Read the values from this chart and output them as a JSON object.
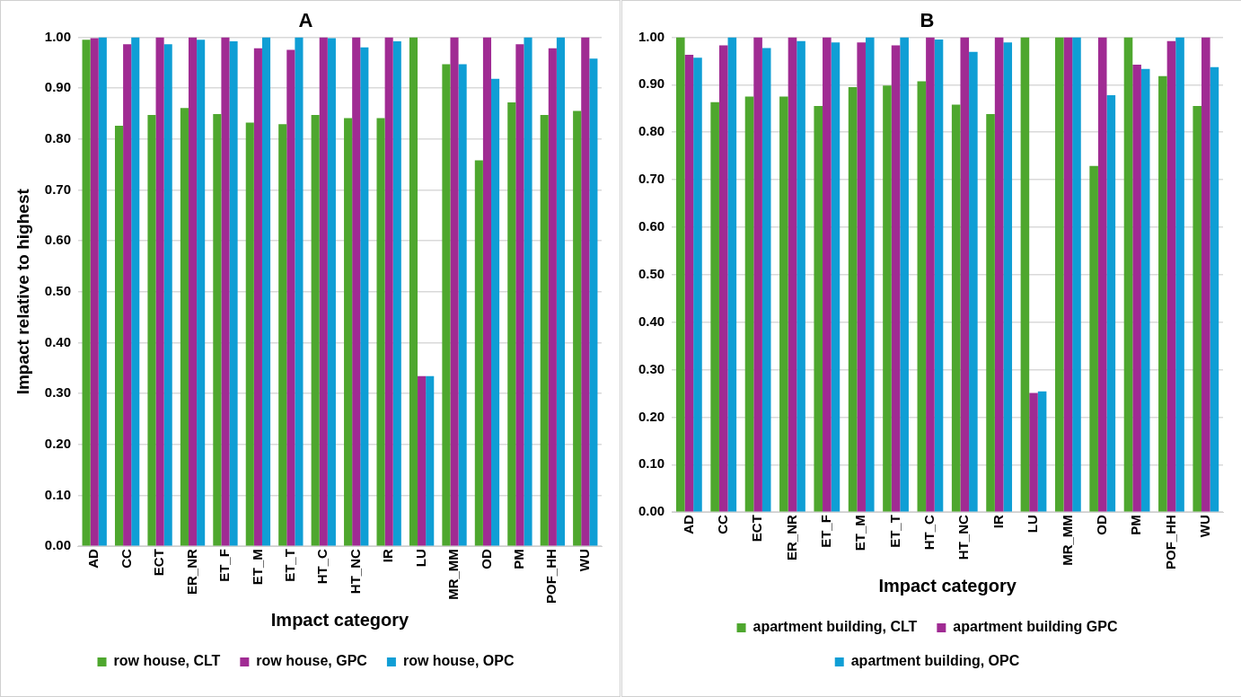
{
  "chart_data": [
    {
      "type": "bar",
      "title": "A",
      "xlabel": "Impact category",
      "ylabel": "Impact relative to highest",
      "categories": [
        "AD",
        "CC",
        "ECT",
        "ER_NR",
        "ET_F",
        "ET_M",
        "ET_T",
        "HT_C",
        "HT_NC",
        "IR",
        "LU",
        "MR_MM",
        "OD",
        "PM",
        "POF_HH",
        "WU"
      ],
      "ylim": [
        0,
        1
      ],
      "yticks": [
        {
          "value": 0,
          "label": "0.00"
        },
        {
          "value": 0.1,
          "label": "0.10"
        },
        {
          "value": 0.2,
          "label": "0.20"
        },
        {
          "value": 0.3,
          "label": "0.30"
        },
        {
          "value": 0.4,
          "label": "0.40"
        },
        {
          "value": 0.5,
          "label": "0.50"
        },
        {
          "value": 0.6,
          "label": "0.60"
        },
        {
          "value": 0.7,
          "label": "0.70"
        },
        {
          "value": 0.8,
          "label": "0.80"
        },
        {
          "value": 0.9,
          "label": "0.90"
        },
        {
          "value": 1,
          "label": "1.00"
        }
      ],
      "grid": "y",
      "legend": "bottom",
      "series": [
        {
          "name": "row house, CLT",
          "color": "#4ea72e",
          "values": [
            0.995,
            0.826,
            0.847,
            0.861,
            0.849,
            0.832,
            0.829,
            0.847,
            0.841,
            0.841,
            1.0,
            0.947,
            0.758,
            0.872,
            0.847,
            0.855
          ]
        },
        {
          "name": "row house, GPC",
          "color": "#a02b93",
          "values": [
            0.998,
            0.986,
            1.0,
            1.0,
            1.0,
            0.978,
            0.975,
            1.0,
            1.0,
            1.0,
            0.334,
            1.0,
            1.0,
            0.986,
            0.978,
            1.0
          ]
        },
        {
          "name": "row house, OPC",
          "color": "#0f9ed5",
          "values": [
            1.0,
            1.0,
            0.986,
            0.995,
            0.992,
            1.0,
            1.0,
            0.998,
            0.98,
            0.992,
            0.334,
            0.947,
            0.918,
            1.0,
            1.0,
            0.958
          ]
        }
      ]
    },
    {
      "type": "bar",
      "title": "B",
      "xlabel": "Impact category",
      "categories": [
        "AD",
        "CC",
        "ECT",
        "ER_NR",
        "ET_F",
        "ET_M",
        "ET_T",
        "HT_C",
        "HT_NC",
        "IR",
        "LU",
        "MR_MM",
        "OD",
        "PM",
        "POF_HH",
        "WU"
      ],
      "ylim": [
        0,
        1
      ],
      "yticks": [
        {
          "value": 0,
          "label": "0.00"
        },
        {
          "value": 0.1,
          "label": "0.10"
        },
        {
          "value": 0.2,
          "label": "0.20"
        },
        {
          "value": 0.3,
          "label": "0.30"
        },
        {
          "value": 0.4,
          "label": "0.40"
        },
        {
          "value": 0.5,
          "label": "0.50"
        },
        {
          "value": 0.6,
          "label": "0.60"
        },
        {
          "value": 0.7,
          "label": "0.70"
        },
        {
          "value": 0.8,
          "label": "0.80"
        },
        {
          "value": 0.9,
          "label": "0.90"
        },
        {
          "value": 1,
          "label": "1.00"
        }
      ],
      "grid": "y",
      "legend": "bottom",
      "series": [
        {
          "name": "apartment building, CLT",
          "color": "#4ea72e",
          "values": [
            1.0,
            0.863,
            0.875,
            0.875,
            0.855,
            0.895,
            0.898,
            0.907,
            0.858,
            0.838,
            1.0,
            1.0,
            0.729,
            1.0,
            0.918,
            0.855
          ]
        },
        {
          "name": "apartment building GPC",
          "color": "#a02b93",
          "values": [
            0.963,
            0.983,
            1.0,
            1.0,
            1.0,
            0.989,
            0.983,
            1.0,
            1.0,
            1.0,
            0.251,
            1.0,
            1.0,
            0.942,
            0.992,
            1.0
          ]
        },
        {
          "name": "apartment building, OPC",
          "color": "#0f9ed5",
          "values": [
            0.957,
            1.0,
            0.977,
            0.992,
            0.989,
            1.0,
            1.0,
            0.995,
            0.969,
            0.989,
            0.254,
            1.0,
            0.878,
            0.933,
            1.0,
            0.937
          ]
        }
      ]
    }
  ]
}
